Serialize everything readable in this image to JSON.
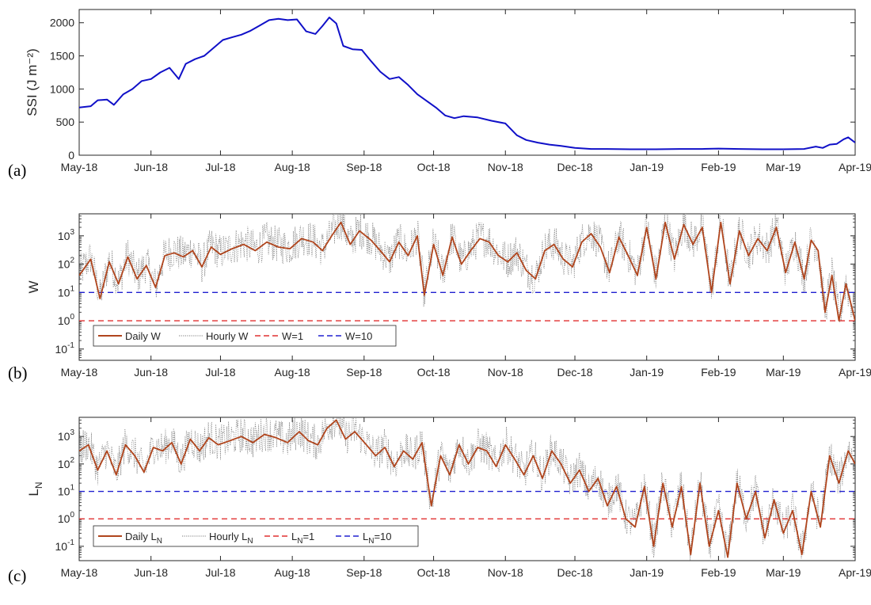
{
  "chart_data": [
    {
      "type": "line",
      "panel_label": "(a)",
      "ylabel": "SSI (J m⁻²)",
      "x_ticks": [
        "May-18",
        "Jun-18",
        "Jul-18",
        "Aug-18",
        "Sep-18",
        "Oct-18",
        "Nov-18",
        "Dec-18",
        "Jan-19",
        "Feb-19",
        "Mar-19",
        "Apr-19"
      ],
      "xlim": [
        "2018-05-01",
        "2019-04-01"
      ],
      "ylim": [
        0,
        2200
      ],
      "y_ticks": [
        0,
        500,
        1000,
        1500,
        2000
      ],
      "y_scale": "linear",
      "grid": false,
      "series": [
        {
          "color": "#1010c8",
          "x": [
            "2018-05-01",
            "2018-05-06",
            "2018-05-09",
            "2018-05-13",
            "2018-05-16",
            "2018-05-20",
            "2018-05-24",
            "2018-05-28",
            "2018-06-01",
            "2018-06-05",
            "2018-06-09",
            "2018-06-13",
            "2018-06-16",
            "2018-06-20",
            "2018-06-24",
            "2018-06-28",
            "2018-07-02",
            "2018-07-06",
            "2018-07-10",
            "2018-07-14",
            "2018-07-18",
            "2018-07-22",
            "2018-07-26",
            "2018-07-30",
            "2018-08-03",
            "2018-08-07",
            "2018-08-11",
            "2018-08-14",
            "2018-08-17",
            "2018-08-20",
            "2018-08-23",
            "2018-08-27",
            "2018-08-31",
            "2018-09-04",
            "2018-09-08",
            "2018-09-12",
            "2018-09-16",
            "2018-09-20",
            "2018-09-24",
            "2018-09-28",
            "2018-10-02",
            "2018-10-06",
            "2018-10-10",
            "2018-10-14",
            "2018-10-20",
            "2018-10-26",
            "2018-11-01",
            "2018-11-06",
            "2018-11-10",
            "2018-11-15",
            "2018-11-20",
            "2018-11-25",
            "2018-12-01",
            "2018-12-08",
            "2018-12-15",
            "2018-12-25",
            "2019-01-05",
            "2019-01-15",
            "2019-01-25",
            "2019-02-01",
            "2019-02-10",
            "2019-02-20",
            "2019-03-01",
            "2019-03-10",
            "2019-03-15",
            "2019-03-18",
            "2019-03-21",
            "2019-03-24",
            "2019-03-27",
            "2019-03-29",
            "2019-04-01"
          ],
          "y": [
            720,
            740,
            830,
            840,
            760,
            920,
            1000,
            1120,
            1150,
            1250,
            1320,
            1150,
            1380,
            1450,
            1500,
            1620,
            1740,
            1780,
            1820,
            1880,
            1960,
            2040,
            2060,
            2040,
            2050,
            1870,
            1830,
            1950,
            2080,
            1990,
            1650,
            1600,
            1590,
            1420,
            1260,
            1150,
            1180,
            1060,
            920,
            820,
            720,
            600,
            560,
            590,
            570,
            520,
            480,
            300,
            230,
            190,
            160,
            140,
            110,
            95,
            95,
            90,
            90,
            95,
            95,
            100,
            95,
            90,
            90,
            95,
            130,
            110,
            160,
            170,
            240,
            270,
            190
          ]
        }
      ]
    },
    {
      "type": "line",
      "panel_label": "(b)",
      "ylabel": "W",
      "x_ticks": [
        "May-18",
        "Jun-18",
        "Jul-18",
        "Aug-18",
        "Sep-18",
        "Oct-18",
        "Nov-18",
        "Dec-18",
        "Jan-19",
        "Feb-19",
        "Mar-19",
        "Apr-19"
      ],
      "xlim": [
        "2018-05-01",
        "2019-04-01"
      ],
      "ylim": [
        0.04,
        6000
      ],
      "y_ticks": [
        0.1,
        1,
        10,
        100,
        1000
      ],
      "y_tick_base": "10",
      "y_tick_exponents": [
        "-1",
        "0",
        "1",
        "2",
        "3"
      ],
      "y_scale": "log",
      "grid": false,
      "legend_position": "lower-left",
      "series": [
        {
          "name": "Daily W",
          "color": "#b0451d",
          "style": "solid",
          "x": [
            "2018-05-01",
            "2018-05-06",
            "2018-05-10",
            "2018-05-14",
            "2018-05-18",
            "2018-05-22",
            "2018-05-26",
            "2018-05-30",
            "2018-06-03",
            "2018-06-07",
            "2018-06-11",
            "2018-06-15",
            "2018-06-19",
            "2018-06-23",
            "2018-06-27",
            "2018-07-01",
            "2018-07-06",
            "2018-07-11",
            "2018-07-16",
            "2018-07-21",
            "2018-07-26",
            "2018-07-31",
            "2018-08-05",
            "2018-08-10",
            "2018-08-14",
            "2018-08-18",
            "2018-08-22",
            "2018-08-26",
            "2018-08-30",
            "2018-09-04",
            "2018-09-08",
            "2018-09-12",
            "2018-09-16",
            "2018-09-20",
            "2018-09-24",
            "2018-09-27",
            "2018-10-01",
            "2018-10-05",
            "2018-10-09",
            "2018-10-13",
            "2018-10-17",
            "2018-10-21",
            "2018-10-25",
            "2018-10-29",
            "2018-11-02",
            "2018-11-06",
            "2018-11-10",
            "2018-11-14",
            "2018-11-18",
            "2018-11-22",
            "2018-11-26",
            "2018-11-30",
            "2018-12-04",
            "2018-12-08",
            "2018-12-12",
            "2018-12-16",
            "2018-12-20",
            "2018-12-24",
            "2018-12-28",
            "2019-01-01",
            "2019-01-05",
            "2019-01-09",
            "2019-01-13",
            "2019-01-17",
            "2019-01-21",
            "2019-01-25",
            "2019-01-29",
            "2019-02-02",
            "2019-02-06",
            "2019-02-10",
            "2019-02-14",
            "2019-02-18",
            "2019-02-22",
            "2019-02-26",
            "2019-03-02",
            "2019-03-06",
            "2019-03-10",
            "2019-03-13",
            "2019-03-16",
            "2019-03-19",
            "2019-03-22",
            "2019-03-25",
            "2019-03-28",
            "2019-04-01"
          ],
          "y": [
            40,
            150,
            6,
            120,
            20,
            180,
            30,
            90,
            15,
            200,
            250,
            180,
            300,
            80,
            400,
            220,
            350,
            500,
            300,
            600,
            400,
            350,
            800,
            600,
            300,
            1000,
            3000,
            500,
            1500,
            700,
            300,
            120,
            600,
            200,
            1000,
            8,
            500,
            40,
            900,
            100,
            300,
            800,
            600,
            200,
            120,
            250,
            60,
            30,
            300,
            500,
            150,
            80,
            600,
            1200,
            400,
            50,
            900,
            200,
            40,
            2000,
            30,
            3000,
            150,
            2500,
            500,
            2000,
            10,
            3000,
            20,
            1500,
            200,
            800,
            300,
            2000,
            50,
            600,
            30,
            700,
            300,
            2,
            40,
            1,
            20,
            1
          ]
        },
        {
          "name": "Hourly W",
          "color": "#7a7a7a",
          "style": "dotted",
          "generated_from_daily": true
        },
        {
          "name": "W=1",
          "color": "#e03030",
          "style": "dashed",
          "constant": 1
        },
        {
          "name": "W=10",
          "color": "#2020d0",
          "style": "dashed",
          "constant": 10
        }
      ]
    },
    {
      "type": "line",
      "panel_label": "(c)",
      "ylabel_base": "L",
      "ylabel_sub": "N",
      "x_ticks": [
        "May-18",
        "Jun-18",
        "Jul-18",
        "Aug-18",
        "Sep-18",
        "Oct-18",
        "Nov-18",
        "Dec-18",
        "Jan-19",
        "Feb-19",
        "Mar-19",
        "Apr-19"
      ],
      "xlim": [
        "2018-05-01",
        "2019-04-01"
      ],
      "ylim": [
        0.03,
        5000
      ],
      "y_ticks": [
        0.1,
        1,
        10,
        100,
        1000
      ],
      "y_tick_base": "10",
      "y_tick_exponents": [
        "-1",
        "0",
        "1",
        "2",
        "3"
      ],
      "y_scale": "log",
      "grid": false,
      "legend_position": "lower-left",
      "series": [
        {
          "name_base": "Daily L",
          "name_sub": "N",
          "color": "#b0451d",
          "style": "solid",
          "x": [
            "2018-05-01",
            "2018-05-05",
            "2018-05-09",
            "2018-05-13",
            "2018-05-17",
            "2018-05-21",
            "2018-05-25",
            "2018-05-29",
            "2018-06-02",
            "2018-06-06",
            "2018-06-10",
            "2018-06-14",
            "2018-06-18",
            "2018-06-22",
            "2018-06-26",
            "2018-06-30",
            "2018-07-05",
            "2018-07-10",
            "2018-07-15",
            "2018-07-20",
            "2018-07-25",
            "2018-07-30",
            "2018-08-04",
            "2018-08-08",
            "2018-08-12",
            "2018-08-16",
            "2018-08-20",
            "2018-08-24",
            "2018-08-28",
            "2018-09-02",
            "2018-09-06",
            "2018-09-10",
            "2018-09-14",
            "2018-09-18",
            "2018-09-22",
            "2018-09-26",
            "2018-09-30",
            "2018-10-04",
            "2018-10-08",
            "2018-10-12",
            "2018-10-16",
            "2018-10-20",
            "2018-10-24",
            "2018-10-28",
            "2018-11-01",
            "2018-11-05",
            "2018-11-09",
            "2018-11-13",
            "2018-11-17",
            "2018-11-21",
            "2018-11-25",
            "2018-11-29",
            "2018-12-03",
            "2018-12-07",
            "2018-12-11",
            "2018-12-15",
            "2018-12-19",
            "2018-12-23",
            "2018-12-27",
            "2018-12-31",
            "2019-01-04",
            "2019-01-08",
            "2019-01-12",
            "2019-01-16",
            "2019-01-20",
            "2019-01-24",
            "2019-01-28",
            "2019-02-01",
            "2019-02-05",
            "2019-02-09",
            "2019-02-13",
            "2019-02-17",
            "2019-02-21",
            "2019-02-25",
            "2019-03-01",
            "2019-03-05",
            "2019-03-09",
            "2019-03-13",
            "2019-03-17",
            "2019-03-21",
            "2019-03-25",
            "2019-03-29",
            "2019-04-01"
          ],
          "y": [
            300,
            500,
            60,
            300,
            40,
            500,
            200,
            50,
            400,
            300,
            600,
            100,
            800,
            300,
            900,
            500,
            700,
            1000,
            600,
            1200,
            900,
            600,
            1500,
            700,
            500,
            2000,
            4000,
            800,
            1500,
            500,
            200,
            400,
            80,
            300,
            150,
            600,
            3,
            200,
            40,
            500,
            100,
            400,
            300,
            80,
            500,
            150,
            40,
            200,
            30,
            300,
            100,
            20,
            60,
            10,
            30,
            3,
            15,
            1,
            0.5,
            15,
            0.1,
            20,
            0.5,
            15,
            0.05,
            20,
            0.1,
            2,
            0.04,
            20,
            1,
            10,
            0.2,
            5,
            0.3,
            2,
            0.05,
            10,
            0.5,
            200,
            20,
            300,
            100
          ]
        },
        {
          "name_base": "Hourly L",
          "name_sub": "N",
          "color": "#7a7a7a",
          "style": "dotted",
          "generated_from_daily": true
        },
        {
          "name_base": "L",
          "name_sub": "N",
          "name_suffix": "=1",
          "color": "#e03030",
          "style": "dashed",
          "constant": 1
        },
        {
          "name_base": "L",
          "name_sub": "N",
          "name_suffix": "=10",
          "color": "#2020d0",
          "style": "dashed",
          "constant": 10
        }
      ]
    }
  ]
}
